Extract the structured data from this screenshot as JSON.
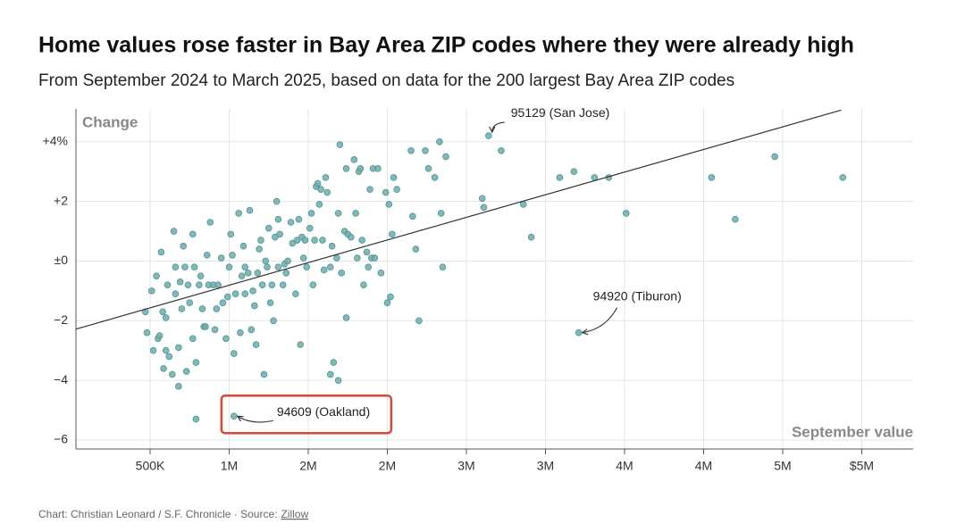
{
  "chart_data": {
    "type": "scatter",
    "title": "Home values rose faster in Bay Area ZIP codes where they were already high",
    "subtitle": "From September 2024 to March 2025, based on data for the 200 largest Bay Area ZIP codes",
    "y_label": "Change",
    "x_label": "September value",
    "credit": "Chart: Christian Leonard / S.F. Chronicle · Source:",
    "source_link": "Zillow",
    "color": "#6aadad",
    "grid": true,
    "xlim": [
      31000,
      5325000
    ],
    "ylim": [
      -6.3,
      5.1
    ],
    "xticks": [
      {
        "value": 500000,
        "label": "500K"
      },
      {
        "value": 1000000,
        "label": "1M"
      },
      {
        "value": 1500000,
        "label": "2M"
      },
      {
        "value": 2000000,
        "label": "2M"
      },
      {
        "value": 2500000,
        "label": "3M"
      },
      {
        "value": 3000000,
        "label": "3M"
      },
      {
        "value": 3500000,
        "label": "4M"
      },
      {
        "value": 4000000,
        "label": "4M"
      },
      {
        "value": 4500000,
        "label": "5M"
      },
      {
        "value": 5000000,
        "label": "$5M"
      }
    ],
    "yticks": [
      {
        "value": 4,
        "label": "+4%"
      },
      {
        "value": 2,
        "label": "+2"
      },
      {
        "value": 0,
        "label": "±0"
      },
      {
        "value": -2,
        "label": "−2"
      },
      {
        "value": -4,
        "label": "−4"
      },
      {
        "value": -6,
        "label": "−6"
      }
    ],
    "x": [
      470000,
      480000,
      510000,
      540000,
      520000,
      550000,
      560000,
      570000,
      580000,
      585000,
      600000,
      600000,
      610000,
      620000,
      640000,
      650000,
      660000,
      660000,
      680000,
      680000,
      690000,
      700000,
      710000,
      720000,
      730000,
      740000,
      750000,
      770000,
      770000,
      780000,
      790000,
      790000,
      810000,
      820000,
      830000,
      840000,
      850000,
      860000,
      870000,
      880000,
      900000,
      910000,
      920000,
      930000,
      950000,
      960000,
      980000,
      990000,
      1000000,
      1010000,
      1020000,
      1030000,
      1030000,
      1040000,
      1060000,
      1070000,
      1080000,
      1090000,
      1100000,
      1100000,
      1120000,
      1130000,
      1140000,
      1150000,
      1160000,
      1170000,
      1180000,
      1190000,
      1200000,
      1210000,
      1220000,
      1230000,
      1240000,
      1250000,
      1260000,
      1270000,
      1280000,
      1290000,
      1300000,
      1310000,
      1310000,
      1320000,
      1340000,
      1350000,
      1360000,
      1370000,
      1390000,
      1400000,
      1420000,
      1430000,
      1440000,
      1450000,
      1460000,
      1470000,
      1480000,
      1490000,
      1510000,
      1520000,
      1530000,
      1540000,
      1550000,
      1560000,
      1570000,
      1580000,
      1590000,
      1600000,
      1610000,
      1620000,
      1640000,
      1640000,
      1650000,
      1660000,
      1680000,
      1690000,
      1690000,
      1700000,
      1710000,
      1730000,
      1740000,
      1740000,
      1750000,
      1770000,
      1790000,
      1800000,
      1810000,
      1820000,
      1830000,
      1840000,
      1850000,
      1870000,
      1880000,
      1890000,
      1900000,
      1910000,
      1920000,
      1940000,
      1960000,
      1990000,
      2000000,
      2010000,
      2020000,
      2030000,
      2040000,
      2060000,
      2150000,
      2160000,
      2180000,
      2200000,
      2240000,
      2260000,
      2300000,
      2330000,
      2340000,
      2350000,
      2370000,
      2600000,
      2610000,
      2640000,
      2720000,
      2860000,
      2910000,
      3090000,
      3180000,
      3210000,
      3310000,
      3400000,
      3510000,
      4050000,
      4200000,
      4450000,
      4880000
    ],
    "y": [
      -1.7,
      -2.4,
      -1.0,
      -0.5,
      -3.0,
      -2.6,
      -2.5,
      0.3,
      -1.7,
      -3.6,
      -3.0,
      -1.9,
      -0.8,
      -3.2,
      -3.8,
      1.0,
      -0.2,
      -1.1,
      -4.2,
      -2.9,
      -0.7,
      -1.6,
      0.5,
      -0.2,
      -3.7,
      -0.8,
      -1.4,
      -2.6,
      0.9,
      -0.2,
      -3.4,
      -5.3,
      -0.8,
      -0.5,
      -1.6,
      -2.2,
      -2.2,
      0.2,
      -0.8,
      1.3,
      -0.8,
      -2.3,
      -1.6,
      -0.8,
      0.1,
      -1.4,
      -2.6,
      -1.2,
      -0.2,
      0.9,
      0.2,
      -5.2,
      -3.1,
      -1.1,
      1.6,
      -2.4,
      -0.5,
      0.5,
      -1.1,
      -0.2,
      -0.4,
      1.7,
      -2.3,
      -1.0,
      -1.5,
      -2.8,
      -0.4,
      0.4,
      0.7,
      -0.8,
      -3.8,
      0.0,
      -0.2,
      1.1,
      -1.4,
      -0.8,
      -2.0,
      0.8,
      2.0,
      1.4,
      -0.2,
      0.9,
      -0.8,
      -0.1,
      -0.4,
      0.0,
      1.3,
      0.6,
      -1.1,
      0.7,
      1.4,
      -2.8,
      0.8,
      0.1,
      0.7,
      -0.2,
      1.1,
      1.6,
      -0.8,
      0.7,
      2.5,
      2.6,
      1.9,
      2.4,
      0.7,
      -0.3,
      2.8,
      2.3,
      -0.2,
      -3.8,
      0.5,
      -3.4,
      0.1,
      1.6,
      -4.0,
      3.9,
      -0.4,
      1.0,
      -1.9,
      3.1,
      0.9,
      0.8,
      3.4,
      1.6,
      0.1,
      3.0,
      3.1,
      0.7,
      -0.8,
      0.3,
      -0.2,
      2.4,
      0.1,
      3.1,
      0.1,
      3.1,
      -0.4,
      2.3,
      -1.4,
      1.9,
      -1.2,
      0.9,
      2.8,
      2.4,
      3.7,
      1.5,
      0.4,
      -2.0,
      3.7,
      3.1,
      2.8,
      4.0,
      1.6,
      -0.2,
      3.5,
      2.1,
      1.8,
      4.2,
      3.7,
      1.9,
      0.8,
      2.8,
      3.0,
      -2.4,
      2.8,
      2.8,
      1.6,
      2.8,
      1.4,
      3.5,
      2.8
    ],
    "trendline": {
      "x": [
        31000,
        4870000
      ],
      "y": [
        -2.28,
        5.06
      ]
    },
    "annotations": [
      {
        "text": "95129 (San Jose)",
        "x": 2640000,
        "y": 4.2
      },
      {
        "text": "94920 (Tiburon)",
        "x": 3210000,
        "y": -2.4
      },
      {
        "text": "94609 (Oakland)",
        "x": 1030000,
        "y": -5.2
      }
    ]
  }
}
